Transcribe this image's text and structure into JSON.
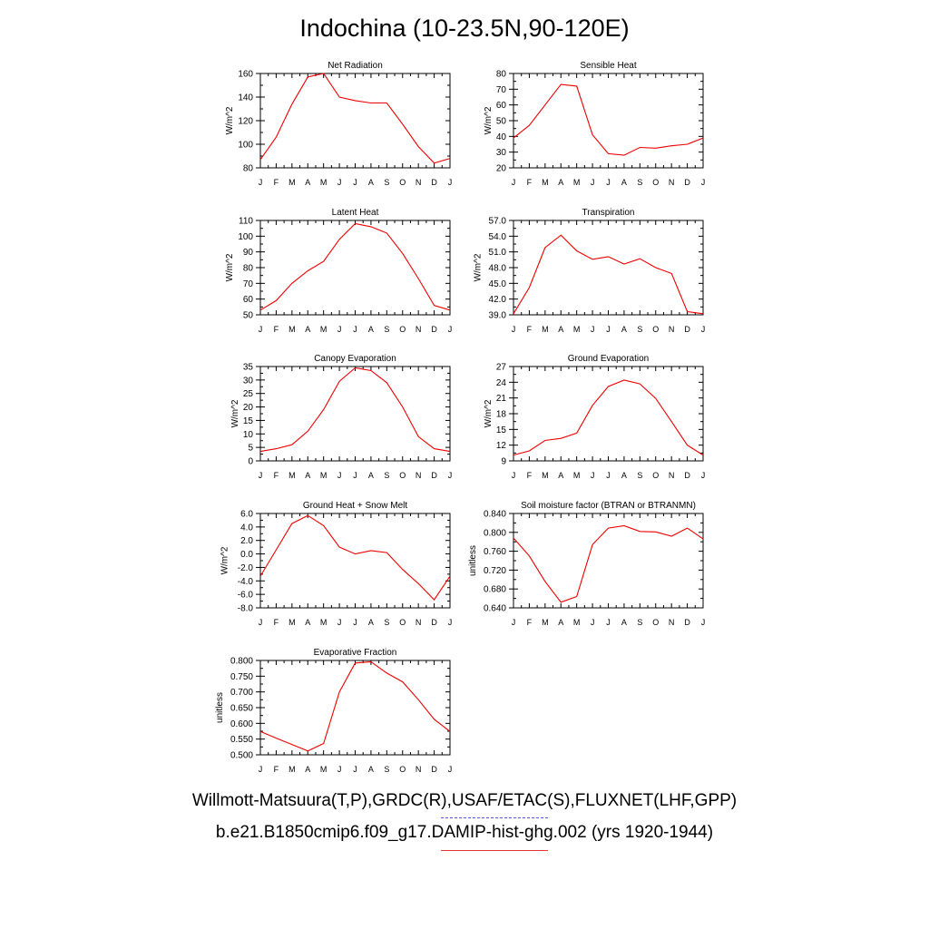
{
  "title": "Indochina (10-23.5N,90-120E)",
  "caption_obs": "Willmott-Matsuura(T,P),GRDC(R),USAF/ETAC(S),FLUXNET(LHF,GPP)",
  "caption_model": "b.e21.B1850cmip6.f09_g17.DAMIP-hist-ghg.002 (yrs 1920-1944)",
  "colors": {
    "model": "#ee0000",
    "obs": "#5555ee",
    "axis": "#000000"
  },
  "months": [
    "J",
    "F",
    "M",
    "A",
    "M",
    "J",
    "J",
    "A",
    "S",
    "O",
    "N",
    "D",
    "J"
  ],
  "chart_data": [
    {
      "type": "line",
      "title": "Net Radiation",
      "ylabel": "W/m^2",
      "ylim": [
        80,
        160
      ],
      "yticks": [
        "80",
        "100",
        "120",
        "140",
        "160"
      ],
      "series": [
        {
          "values": [
            87,
            106,
            134,
            157,
            160,
            140,
            137,
            135,
            135,
            117,
            98,
            84,
            88
          ]
        }
      ]
    },
    {
      "type": "line",
      "title": "Sensible Heat",
      "ylabel": "W/m^2",
      "ylim": [
        20,
        80
      ],
      "yticks": [
        "20",
        "30",
        "40",
        "50",
        "60",
        "70",
        "80"
      ],
      "series": [
        {
          "values": [
            39,
            47,
            60,
            73,
            72,
            41,
            29,
            28,
            33,
            32.5,
            34,
            35,
            39
          ]
        }
      ]
    },
    {
      "type": "line",
      "title": "Latent Heat",
      "ylabel": "W/m^2",
      "ylim": [
        50,
        110
      ],
      "yticks": [
        "50",
        "60",
        "70",
        "80",
        "90",
        "100",
        "110"
      ],
      "series": [
        {
          "values": [
            53,
            59,
            70,
            78,
            84,
            98,
            108,
            106,
            102,
            89,
            73,
            56,
            53
          ]
        }
      ]
    },
    {
      "type": "line",
      "title": "Transpiration",
      "ylabel": "W/m^2",
      "ylim": [
        39,
        57
      ],
      "yticks": [
        "39.0",
        "42.0",
        "45.0",
        "48.0",
        "51.0",
        "54.0",
        "57.0"
      ],
      "series": [
        {
          "values": [
            39.2,
            44.2,
            51.8,
            54.2,
            51.2,
            49.6,
            50.1,
            48.7,
            49.7,
            48.0,
            46.9,
            39.6,
            39.2
          ]
        }
      ]
    },
    {
      "type": "line",
      "title": "Canopy Evaporation",
      "ylabel": "W/m^2",
      "ylim": [
        0,
        35
      ],
      "yticks": [
        "0",
        "5",
        "10",
        "15",
        "20",
        "25",
        "30",
        "35"
      ],
      "series": [
        {
          "values": [
            3.5,
            4.5,
            6,
            11,
            19,
            29.5,
            34.5,
            33.5,
            29,
            20,
            9,
            4.5,
            3.5
          ]
        }
      ]
    },
    {
      "type": "line",
      "title": "Ground Evaporation",
      "ylabel": "W/m^2",
      "ylim": [
        9,
        27
      ],
      "yticks": [
        "9",
        "12",
        "15",
        "18",
        "21",
        "24",
        "27"
      ],
      "series": [
        {
          "values": [
            10.1,
            10.9,
            12.9,
            13.3,
            14.3,
            19.6,
            23.2,
            24.4,
            23.7,
            20.9,
            16.5,
            12.0,
            10.1
          ]
        }
      ]
    },
    {
      "type": "line",
      "title": "Ground Heat + Snow Melt",
      "ylabel": "W/m^2",
      "ylim": [
        -8,
        6
      ],
      "yticks": [
        "-8.0",
        "-6.0",
        "-4.0",
        "-2.0",
        "0.0",
        "2.0",
        "4.0",
        "6.0"
      ],
      "series": [
        {
          "values": [
            -3.3,
            0.6,
            4.5,
            5.7,
            4.2,
            1.0,
            0.0,
            0.5,
            0.2,
            -2.3,
            -4.4,
            -6.8,
            -3.3
          ]
        }
      ]
    },
    {
      "type": "line",
      "title": "Soil moisture factor (BTRAN or BTRANMN)",
      "ylabel": "unitless",
      "ylim": [
        0.64,
        0.84
      ],
      "yticks": [
        "0.640",
        "0.680",
        "0.720",
        "0.760",
        "0.800",
        "0.840"
      ],
      "series": [
        {
          "values": [
            0.788,
            0.75,
            0.696,
            0.652,
            0.664,
            0.774,
            0.809,
            0.814,
            0.802,
            0.801,
            0.792,
            0.809,
            0.786
          ]
        }
      ]
    },
    {
      "type": "line",
      "title": "Evaporative Fraction",
      "ylabel": "unitless",
      "ylim": [
        0.5,
        0.8
      ],
      "yticks": [
        "0.500",
        "0.550",
        "0.600",
        "0.650",
        "0.700",
        "0.750",
        "0.800"
      ],
      "series": [
        {
          "values": [
            0.574,
            0.553,
            0.533,
            0.512,
            0.536,
            0.7,
            0.792,
            0.796,
            0.76,
            0.732,
            0.675,
            0.613,
            0.574
          ]
        }
      ]
    }
  ]
}
